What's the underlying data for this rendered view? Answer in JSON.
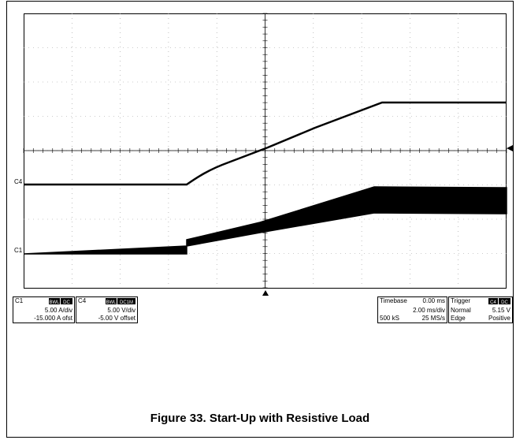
{
  "channels": {
    "c1": {
      "label": "C1",
      "badges": [
        "BWL",
        "DC"
      ],
      "scale": "5.00 A/div",
      "offset": "-15.000 A ofst"
    },
    "c4": {
      "label": "C4",
      "badges": [
        "BWL",
        "DC1M"
      ],
      "scale": "5.00 V/div",
      "offset": "-5.00 V offset"
    }
  },
  "timebase": {
    "title": "Timebase",
    "delay": "0.00 ms",
    "scale": "2.00 ms/div",
    "samples": "500 kS",
    "rate": "25 MS/s"
  },
  "trigger": {
    "title": "Trigger",
    "badges": [
      "C4",
      "DC"
    ],
    "level": "5.15 V",
    "mode": "Normal",
    "type": "Edge",
    "slope": "Positive"
  },
  "caption": "Figure 33. Start-Up with Resistive Load"
}
